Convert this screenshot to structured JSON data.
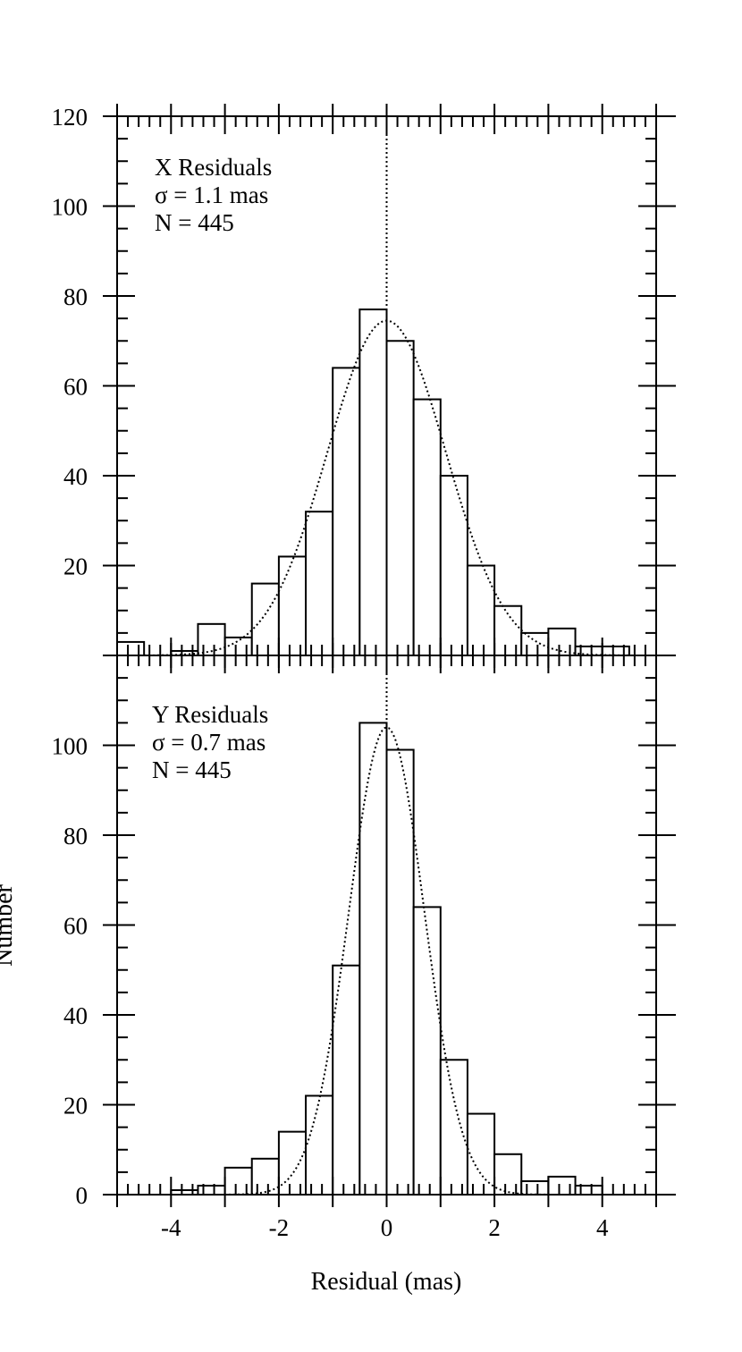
{
  "chart_data": [
    {
      "type": "bar",
      "panel": "top",
      "annotation": [
        "X Residuals",
        "σ = 1.1 mas",
        "N = 445"
      ],
      "bin_edges": [
        -5.0,
        -4.5,
        -4.0,
        -3.5,
        -3.0,
        -2.5,
        -2.0,
        -1.5,
        -1.0,
        -0.5,
        0.0,
        0.5,
        1.0,
        1.5,
        2.0,
        2.5,
        3.0,
        3.5,
        4.0,
        4.5
      ],
      "values": [
        3,
        0,
        1,
        7,
        4,
        16,
        22,
        32,
        64,
        77,
        70,
        57,
        40,
        20,
        11,
        5,
        6,
        2,
        2
      ],
      "gaussian_fit": {
        "amplitude": 74.5,
        "mean": 0.0,
        "sigma": 1.1
      },
      "xlim": [
        -5,
        5
      ],
      "ylim": [
        0,
        120
      ],
      "y_ticks": [
        "20",
        "40",
        "60",
        "80",
        "100",
        "120"
      ],
      "vertical_reference_line": 0
    },
    {
      "type": "bar",
      "panel": "bottom",
      "annotation": [
        "Y Residuals",
        "σ = 0.7 mas",
        "N = 445"
      ],
      "bin_edges": [
        -5.0,
        -4.5,
        -4.0,
        -3.5,
        -3.0,
        -2.5,
        -2.0,
        -1.5,
        -1.0,
        -0.5,
        0.0,
        0.5,
        1.0,
        1.5,
        2.0,
        2.5,
        3.0,
        3.5,
        4.0,
        4.5
      ],
      "values": [
        0,
        0,
        1,
        2,
        6,
        8,
        14,
        22,
        51,
        105,
        99,
        64,
        30,
        18,
        9,
        3,
        4,
        2,
        0
      ],
      "gaussian_fit": {
        "amplitude": 104,
        "mean": 0.0,
        "sigma": 0.7
      },
      "xlim": [
        -5,
        5
      ],
      "ylim": [
        0,
        120
      ],
      "y_ticks": [
        "0",
        "20",
        "40",
        "60",
        "80",
        "100"
      ],
      "x_ticks": [
        "-4",
        "-2",
        "0",
        "2",
        "4"
      ],
      "xlabel": "Residual (mas)",
      "ylabel": "Number",
      "vertical_reference_line": 0
    }
  ]
}
